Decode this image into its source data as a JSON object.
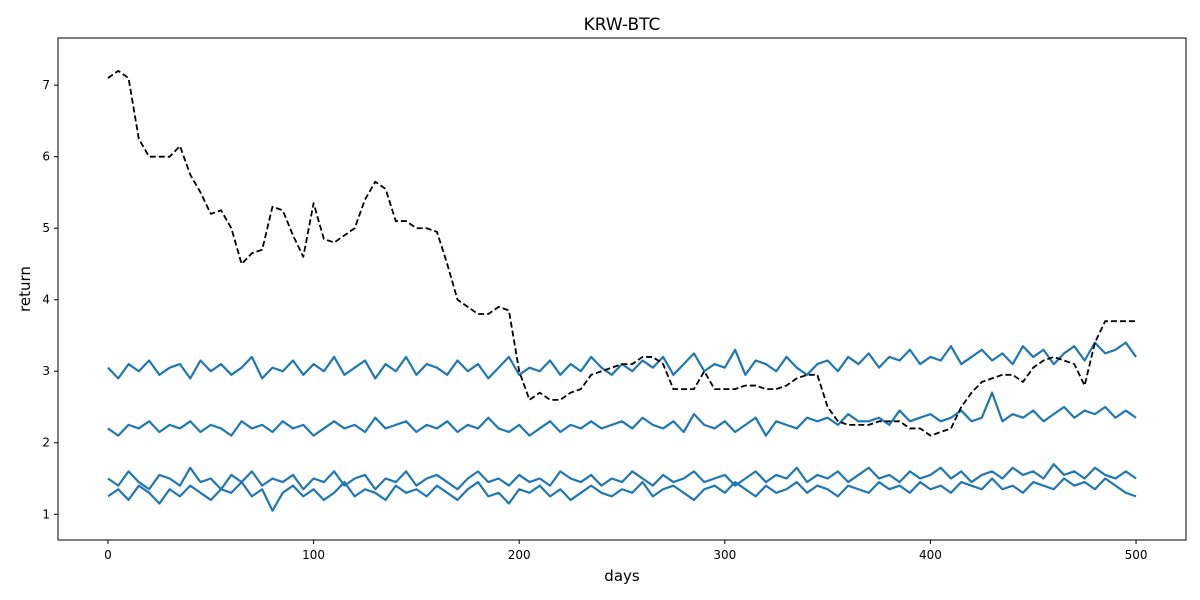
{
  "chart_data": {
    "type": "line",
    "title": "KRW-BTC",
    "x_label": "days",
    "y_label": "return",
    "xlim": [
      -24.3,
      524.3
    ],
    "ylim": [
      0.64,
      7.66
    ],
    "xticks": [
      0,
      100,
      200,
      300,
      400,
      500
    ],
    "yticks": [
      1,
      2,
      3,
      4,
      5,
      6,
      7
    ],
    "x": [
      0,
      5,
      10,
      15,
      20,
      25,
      30,
      35,
      40,
      45,
      50,
      55,
      60,
      65,
      70,
      75,
      80,
      85,
      90,
      95,
      100,
      105,
      110,
      115,
      120,
      125,
      130,
      135,
      140,
      145,
      150,
      155,
      160,
      165,
      170,
      175,
      180,
      185,
      190,
      195,
      200,
      205,
      210,
      215,
      220,
      225,
      230,
      235,
      240,
      245,
      250,
      255,
      260,
      265,
      270,
      275,
      280,
      285,
      290,
      295,
      300,
      305,
      310,
      315,
      320,
      325,
      330,
      335,
      340,
      345,
      350,
      355,
      360,
      365,
      370,
      375,
      380,
      385,
      390,
      395,
      400,
      405,
      410,
      415,
      420,
      425,
      430,
      435,
      440,
      445,
      450,
      455,
      460,
      465,
      470,
      475,
      480,
      485,
      490,
      495,
      500
    ],
    "series": [
      {
        "color": "#000000",
        "dashed": true,
        "values": [
          7.1,
          7.2,
          7.1,
          6.25,
          6.0,
          6.0,
          6.0,
          6.15,
          5.75,
          5.5,
          5.2,
          5.25,
          5.0,
          4.5,
          4.65,
          4.7,
          5.3,
          5.25,
          4.9,
          4.6,
          5.35,
          4.85,
          4.8,
          4.9,
          5.0,
          5.4,
          5.65,
          5.55,
          5.1,
          5.1,
          5.0,
          5.0,
          4.95,
          4.5,
          4.0,
          3.9,
          3.8,
          3.8,
          3.9,
          3.85,
          3.0,
          2.6,
          2.7,
          2.6,
          2.6,
          2.7,
          2.75,
          2.95,
          3.0,
          3.05,
          3.1,
          3.1,
          3.2,
          3.2,
          3.1,
          2.75,
          2.75,
          2.75,
          3.0,
          2.75,
          2.75,
          2.75,
          2.8,
          2.8,
          2.75,
          2.75,
          2.8,
          2.9,
          2.95,
          2.95,
          2.5,
          2.3,
          2.25,
          2.25,
          2.25,
          2.3,
          2.3,
          2.3,
          2.2,
          2.2,
          2.1,
          2.15,
          2.2,
          2.5,
          2.7,
          2.85,
          2.9,
          2.95,
          2.95,
          2.85,
          3.05,
          3.15,
          3.2,
          3.15,
          3.1,
          2.8,
          3.4,
          3.7,
          3.7,
          3.7,
          3.7
        ]
      },
      {
        "color": "#1f77b4",
        "dashed": false,
        "values": [
          3.05,
          2.9,
          3.1,
          3.0,
          3.15,
          2.95,
          3.05,
          3.1,
          2.9,
          3.15,
          3.0,
          3.1,
          2.95,
          3.05,
          3.2,
          2.9,
          3.05,
          3.0,
          3.15,
          2.95,
          3.1,
          3.0,
          3.2,
          2.95,
          3.05,
          3.15,
          2.9,
          3.1,
          3.0,
          3.2,
          2.95,
          3.1,
          3.05,
          2.95,
          3.15,
          3.0,
          3.1,
          2.9,
          3.05,
          3.2,
          2.95,
          3.05,
          3.0,
          3.15,
          2.95,
          3.1,
          3.0,
          3.2,
          3.05,
          2.95,
          3.1,
          3.0,
          3.15,
          3.05,
          3.2,
          2.95,
          3.1,
          3.25,
          3.0,
          3.1,
          3.05,
          3.3,
          2.95,
          3.15,
          3.1,
          3.0,
          3.2,
          3.05,
          2.95,
          3.1,
          3.15,
          3.0,
          3.2,
          3.1,
          3.25,
          3.05,
          3.2,
          3.15,
          3.3,
          3.1,
          3.2,
          3.15,
          3.35,
          3.1,
          3.2,
          3.3,
          3.15,
          3.25,
          3.1,
          3.35,
          3.2,
          3.3,
          3.1,
          3.25,
          3.35,
          3.15,
          3.4,
          3.25,
          3.3,
          3.4,
          3.2
        ]
      },
      {
        "color": "#1f77b4",
        "dashed": false,
        "values": [
          2.2,
          2.1,
          2.25,
          2.2,
          2.3,
          2.15,
          2.25,
          2.2,
          2.3,
          2.15,
          2.25,
          2.2,
          2.1,
          2.3,
          2.2,
          2.25,
          2.15,
          2.3,
          2.2,
          2.25,
          2.1,
          2.2,
          2.3,
          2.2,
          2.25,
          2.15,
          2.35,
          2.2,
          2.25,
          2.3,
          2.15,
          2.25,
          2.2,
          2.3,
          2.15,
          2.25,
          2.2,
          2.35,
          2.2,
          2.15,
          2.25,
          2.1,
          2.2,
          2.3,
          2.15,
          2.25,
          2.2,
          2.3,
          2.2,
          2.25,
          2.3,
          2.2,
          2.35,
          2.25,
          2.2,
          2.3,
          2.15,
          2.4,
          2.25,
          2.2,
          2.3,
          2.15,
          2.25,
          2.35,
          2.1,
          2.3,
          2.25,
          2.2,
          2.35,
          2.3,
          2.35,
          2.25,
          2.4,
          2.3,
          2.3,
          2.35,
          2.25,
          2.45,
          2.3,
          2.35,
          2.4,
          2.3,
          2.35,
          2.45,
          2.3,
          2.35,
          2.7,
          2.3,
          2.4,
          2.35,
          2.45,
          2.3,
          2.4,
          2.5,
          2.35,
          2.45,
          2.4,
          2.5,
          2.35,
          2.45,
          2.35
        ]
      },
      {
        "color": "#1f77b4",
        "dashed": false,
        "values": [
          1.5,
          1.4,
          1.6,
          1.45,
          1.35,
          1.55,
          1.5,
          1.4,
          1.65,
          1.45,
          1.5,
          1.35,
          1.55,
          1.45,
          1.6,
          1.4,
          1.5,
          1.45,
          1.55,
          1.35,
          1.5,
          1.45,
          1.6,
          1.4,
          1.5,
          1.55,
          1.35,
          1.5,
          1.45,
          1.6,
          1.4,
          1.5,
          1.55,
          1.45,
          1.35,
          1.5,
          1.6,
          1.45,
          1.5,
          1.4,
          1.55,
          1.45,
          1.5,
          1.4,
          1.6,
          1.5,
          1.45,
          1.55,
          1.4,
          1.5,
          1.45,
          1.6,
          1.5,
          1.4,
          1.55,
          1.45,
          1.5,
          1.6,
          1.45,
          1.5,
          1.55,
          1.4,
          1.5,
          1.6,
          1.45,
          1.55,
          1.5,
          1.65,
          1.45,
          1.55,
          1.5,
          1.6,
          1.45,
          1.55,
          1.65,
          1.5,
          1.55,
          1.45,
          1.6,
          1.5,
          1.55,
          1.65,
          1.5,
          1.6,
          1.45,
          1.55,
          1.6,
          1.5,
          1.65,
          1.55,
          1.6,
          1.5,
          1.7,
          1.55,
          1.6,
          1.5,
          1.65,
          1.55,
          1.5,
          1.6,
          1.5
        ]
      },
      {
        "color": "#1f77b4",
        "dashed": false,
        "values": [
          1.25,
          1.35,
          1.2,
          1.4,
          1.3,
          1.15,
          1.35,
          1.25,
          1.4,
          1.3,
          1.2,
          1.35,
          1.3,
          1.45,
          1.25,
          1.35,
          1.05,
          1.3,
          1.4,
          1.25,
          1.35,
          1.2,
          1.3,
          1.45,
          1.25,
          1.35,
          1.3,
          1.2,
          1.4,
          1.3,
          1.35,
          1.25,
          1.4,
          1.3,
          1.2,
          1.35,
          1.45,
          1.25,
          1.3,
          1.15,
          1.35,
          1.3,
          1.4,
          1.25,
          1.35,
          1.2,
          1.3,
          1.4,
          1.3,
          1.25,
          1.35,
          1.3,
          1.45,
          1.25,
          1.35,
          1.4,
          1.3,
          1.2,
          1.35,
          1.4,
          1.3,
          1.45,
          1.35,
          1.25,
          1.4,
          1.3,
          1.35,
          1.45,
          1.3,
          1.4,
          1.35,
          1.25,
          1.4,
          1.35,
          1.3,
          1.45,
          1.35,
          1.4,
          1.3,
          1.45,
          1.35,
          1.4,
          1.3,
          1.45,
          1.4,
          1.35,
          1.5,
          1.35,
          1.4,
          1.3,
          1.45,
          1.4,
          1.35,
          1.5,
          1.4,
          1.45,
          1.35,
          1.5,
          1.4,
          1.3,
          1.25
        ]
      }
    ]
  }
}
